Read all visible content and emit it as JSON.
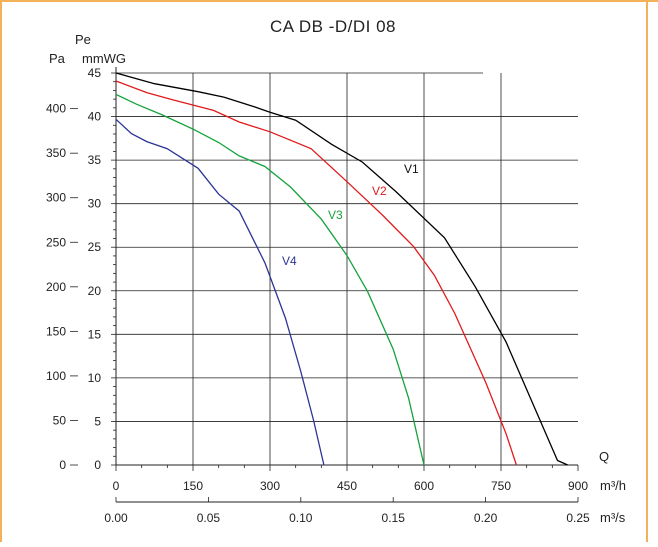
{
  "chart_data": {
    "type": "line",
    "title": "CA DB -D/DI 08",
    "y_labels": {
      "pa": "Pa",
      "pe": "Pe",
      "mmwg": "mmWG"
    },
    "x_labels": {
      "q": "Q",
      "m3h": "m³/h",
      "m3s": "m³/s"
    },
    "grid": true,
    "axes": {
      "x_m3h": {
        "range": [
          0,
          900
        ],
        "ticks": [
          "0",
          "150",
          "300",
          "450",
          "600",
          "750",
          "900"
        ]
      },
      "x_m3s": {
        "range": [
          0,
          0.25
        ],
        "ticks": [
          "0.00",
          "0.05",
          "0.10",
          "0.15",
          "0.20",
          "0.25"
        ]
      },
      "y_pa": {
        "range": [
          0,
          440
        ],
        "ticks": [
          "0",
          "50",
          "100",
          "150",
          "200",
          "250",
          "300",
          "350",
          "400"
        ]
      },
      "y_mmwg": {
        "range": [
          0,
          45
        ],
        "ticks": [
          "0",
          "5",
          "10",
          "15",
          "20",
          "25",
          "30",
          "35",
          "40",
          "45"
        ]
      }
    },
    "series": [
      {
        "name": "V1",
        "color": "#000000",
        "points": [
          [
            0,
            440
          ],
          [
            75,
            428
          ],
          [
            160,
            419
          ],
          [
            210,
            413
          ],
          [
            270,
            402
          ],
          [
            300,
            396
          ],
          [
            350,
            387
          ],
          [
            420,
            360
          ],
          [
            480,
            340
          ],
          [
            545,
            307
          ],
          [
            640,
            255
          ],
          [
            700,
            200
          ],
          [
            760,
            138
          ],
          [
            860,
            5
          ],
          [
            880,
            0
          ]
        ]
      },
      {
        "name": "V2",
        "color": "#e01b1b",
        "points": [
          [
            0,
            431
          ],
          [
            60,
            418
          ],
          [
            110,
            410
          ],
          [
            190,
            398
          ],
          [
            240,
            385
          ],
          [
            300,
            374
          ],
          [
            380,
            355
          ],
          [
            450,
            318
          ],
          [
            520,
            280
          ],
          [
            580,
            245
          ],
          [
            620,
            213
          ],
          [
            660,
            170
          ],
          [
            720,
            93
          ],
          [
            760,
            35
          ],
          [
            780,
            0
          ]
        ]
      },
      {
        "name": "V3",
        "color": "#15a33c",
        "points": [
          [
            0,
            416
          ],
          [
            40,
            405
          ],
          [
            90,
            393
          ],
          [
            150,
            377
          ],
          [
            200,
            362
          ],
          [
            240,
            347
          ],
          [
            290,
            335
          ],
          [
            340,
            312
          ],
          [
            400,
            276
          ],
          [
            450,
            235
          ],
          [
            490,
            195
          ],
          [
            540,
            130
          ],
          [
            570,
            75
          ],
          [
            600,
            0
          ]
        ]
      },
      {
        "name": "V4",
        "color": "#2c3595",
        "points": [
          [
            0,
            388
          ],
          [
            30,
            372
          ],
          [
            60,
            363
          ],
          [
            100,
            355
          ],
          [
            160,
            333
          ],
          [
            200,
            304
          ],
          [
            240,
            285
          ],
          [
            290,
            227
          ],
          [
            330,
            165
          ],
          [
            360,
            105
          ],
          [
            385,
            50
          ],
          [
            405,
            0
          ]
        ]
      }
    ]
  },
  "frame_color": "#f3b15a"
}
